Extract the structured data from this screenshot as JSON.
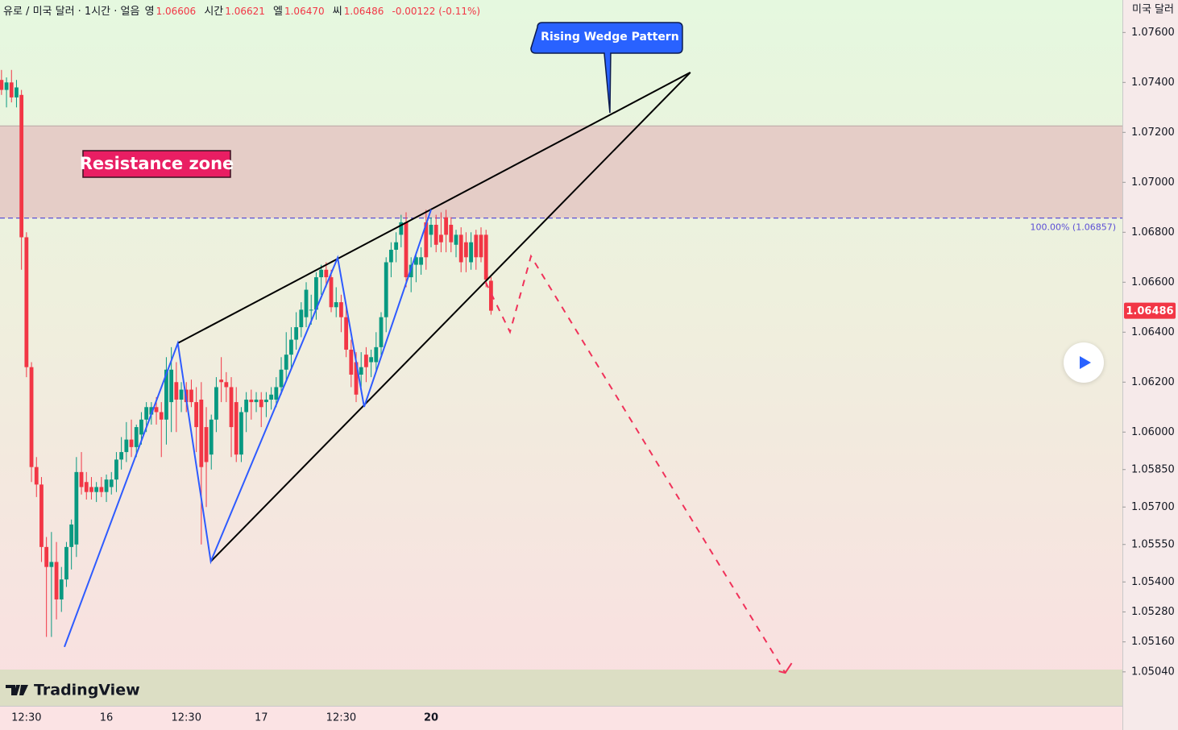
{
  "chart_data": {
    "type": "candlestick",
    "header": {
      "title": "유로 / 미국 달러 · 1시간 · 얼음",
      "open_label": "영",
      "open": "1.06606",
      "high_label": "시간",
      "high": "1.06621",
      "low_label": "엘",
      "low": "1.06470",
      "close_label": "씨",
      "close": "1.06486",
      "change": "-0.00122 (-0.11%)"
    },
    "y_axis_label": "미국 달러",
    "watermark": "TradingView",
    "up_color": "#089981",
    "down_color": "#f23645",
    "xlim": [
      -0.3,
      224.4
    ],
    "ylim": [
      1.04904,
      1.0773
    ],
    "yticks": [
      {
        "value": 1.076,
        "label": "1.07600"
      },
      {
        "value": 1.074,
        "label": "1.07400"
      },
      {
        "value": 1.072,
        "label": "1.07200"
      },
      {
        "value": 1.07,
        "label": "1.07000"
      },
      {
        "value": 1.068,
        "label": "1.06800"
      },
      {
        "value": 1.066,
        "label": "1.06600"
      },
      {
        "value": 1.064,
        "label": "1.06400"
      },
      {
        "value": 1.062,
        "label": "1.06200"
      },
      {
        "value": 1.06,
        "label": "1.06000"
      },
      {
        "value": 1.0585,
        "label": "1.05850"
      },
      {
        "value": 1.057,
        "label": "1.05700"
      },
      {
        "value": 1.0555,
        "label": "1.05550"
      },
      {
        "value": 1.054,
        "label": "1.05400"
      },
      {
        "value": 1.0528,
        "label": "1.05280"
      },
      {
        "value": 1.0516,
        "label": "1.05160"
      },
      {
        "value": 1.0504,
        "label": "1.05040"
      }
    ],
    "categories": [
      null,
      null,
      null,
      null,
      null,
      "12:30",
      null,
      null,
      null,
      null,
      null,
      null,
      null,
      null,
      null,
      null,
      null,
      null,
      null,
      null,
      null,
      "16",
      null,
      null,
      null,
      null,
      null,
      null,
      null,
      null,
      null,
      null,
      null,
      null,
      null,
      null,
      null,
      "12:30",
      null,
      null,
      null,
      null,
      null,
      null,
      null,
      null,
      null,
      null,
      null,
      null,
      null,
      null,
      "17",
      null,
      null,
      null,
      null,
      null,
      null,
      null,
      null,
      null,
      null,
      null,
      null,
      null,
      null,
      null,
      "12:30",
      null,
      null,
      null,
      null,
      null,
      null,
      null,
      null,
      null,
      null,
      null,
      null,
      null,
      null,
      null,
      null,
      null,
      "20",
      null,
      null,
      null,
      null,
      null,
      null,
      null,
      null,
      null,
      null,
      null,
      null
    ],
    "candles": [
      [
        1.0741,
        1.0745,
        1.0735,
        1.0737
      ],
      [
        1.0737,
        1.0742,
        1.073,
        1.074
      ],
      [
        1.074,
        1.0745,
        1.0732,
        1.0734
      ],
      [
        1.0734,
        1.0741,
        1.073,
        1.0738
      ],
      [
        1.0735,
        1.0737,
        1.0665,
        1.0678
      ],
      [
        1.0678,
        1.068,
        1.0622,
        1.0626
      ],
      [
        1.0626,
        1.0628,
        1.058,
        1.0586
      ],
      [
        1.0586,
        1.059,
        1.0574,
        1.0579
      ],
      [
        1.0579,
        1.0582,
        1.0548,
        1.0554
      ],
      [
        1.0554,
        1.0558,
        1.0518,
        1.0546
      ],
      [
        1.0546,
        1.056,
        1.0518,
        1.0548
      ],
      [
        1.0548,
        1.0556,
        1.0525,
        1.0533
      ],
      [
        1.0533,
        1.0546,
        1.0528,
        1.0541
      ],
      [
        1.0541,
        1.0556,
        1.0538,
        1.0554
      ],
      [
        1.0554,
        1.0565,
        1.0545,
        1.0563
      ],
      [
        1.0555,
        1.059,
        1.055,
        1.0584
      ],
      [
        1.0584,
        1.0592,
        1.0575,
        1.0578
      ],
      [
        1.058,
        1.0584,
        1.0573,
        1.0576
      ],
      [
        1.0578,
        1.0582,
        1.0573,
        1.0576
      ],
      [
        1.0576,
        1.058,
        1.0572,
        1.0578
      ],
      [
        1.0578,
        1.0582,
        1.0574,
        1.0576
      ],
      [
        1.0576,
        1.0583,
        1.0572,
        1.0581
      ],
      [
        1.0578,
        1.0584,
        1.0575,
        1.0581
      ],
      [
        1.0581,
        1.0592,
        1.0576,
        1.0589
      ],
      [
        1.0589,
        1.0598,
        1.0585,
        1.0592
      ],
      [
        1.0592,
        1.0604,
        1.0588,
        1.0597
      ],
      [
        1.0597,
        1.0605,
        1.059,
        1.0594
      ],
      [
        1.0594,
        1.0603,
        1.059,
        1.0602
      ],
      [
        1.0599,
        1.0608,
        1.0595,
        1.0605
      ],
      [
        1.0605,
        1.0612,
        1.06,
        1.061
      ],
      [
        1.0607,
        1.0612,
        1.0603,
        1.061
      ],
      [
        1.061,
        1.0614,
        1.0603,
        1.0608
      ],
      [
        1.0608,
        1.0612,
        1.059,
        1.0605
      ],
      [
        1.0605,
        1.063,
        1.0595,
        1.0625
      ],
      [
        1.0612,
        1.0634,
        1.06,
        1.0625
      ],
      [
        1.062,
        1.0628,
        1.06,
        1.0613
      ],
      [
        1.0613,
        1.062,
        1.0608,
        1.0617
      ],
      [
        1.0617,
        1.062,
        1.0608,
        1.0612
      ],
      [
        1.0617,
        1.0621,
        1.061,
        1.0612
      ],
      [
        1.0612,
        1.0618,
        1.0592,
        1.0602
      ],
      [
        1.0613,
        1.062,
        1.0555,
        1.0586
      ],
      [
        1.0602,
        1.061,
        1.057,
        1.0588
      ],
      [
        1.0591,
        1.0607,
        1.0585,
        1.0605
      ],
      [
        1.0605,
        1.0622,
        1.06,
        1.0618
      ],
      [
        1.0621,
        1.063,
        1.0612,
        1.062
      ],
      [
        1.062,
        1.0624,
        1.0612,
        1.0618
      ],
      [
        1.0618,
        1.0622,
        1.059,
        1.0602
      ],
      [
        1.0612,
        1.0618,
        1.0588,
        1.0591
      ],
      [
        1.0591,
        1.061,
        1.0588,
        1.0608
      ],
      [
        1.0608,
        1.0616,
        1.06,
        1.0613
      ],
      [
        1.0613,
        1.0617,
        1.0605,
        1.0612
      ],
      [
        1.0612,
        1.0616,
        1.0608,
        1.0613
      ],
      [
        1.0613,
        1.0616,
        1.0602,
        1.061
      ],
      [
        1.0612,
        1.0616,
        1.0606,
        1.0613
      ],
      [
        1.0613,
        1.0618,
        1.0609,
        1.0615
      ],
      [
        1.0613,
        1.0622,
        1.061,
        1.0618
      ],
      [
        1.0618,
        1.063,
        1.0615,
        1.0625
      ],
      [
        1.0625,
        1.064,
        1.062,
        1.0631
      ],
      [
        1.0631,
        1.0642,
        1.0625,
        1.0637
      ],
      [
        1.0637,
        1.0648,
        1.0633,
        1.0642
      ],
      [
        1.0642,
        1.0652,
        1.0638,
        1.0649
      ],
      [
        1.0646,
        1.066,
        1.0642,
        1.0657
      ],
      [
        1.0649,
        1.0655,
        1.0643,
        1.0649
      ],
      [
        1.0649,
        1.0664,
        1.0645,
        1.0662
      ],
      [
        1.0662,
        1.0667,
        1.0655,
        1.0665
      ],
      [
        1.0665,
        1.0668,
        1.0658,
        1.0662
      ],
      [
        1.0662,
        1.0665,
        1.0648,
        1.065
      ],
      [
        1.065,
        1.0658,
        1.0646,
        1.0652
      ],
      [
        1.0652,
        1.0655,
        1.064,
        1.0646
      ],
      [
        1.0646,
        1.065,
        1.063,
        1.0633
      ],
      [
        1.0633,
        1.0637,
        1.0618,
        1.0623
      ],
      [
        1.0628,
        1.0632,
        1.0612,
        1.0615
      ],
      [
        1.0623,
        1.0632,
        1.0618,
        1.0626
      ],
      [
        1.0631,
        1.0634,
        1.062,
        1.0626
      ],
      [
        1.0628,
        1.0633,
        1.0622,
        1.063
      ],
      [
        1.0628,
        1.064,
        1.0624,
        1.0634
      ],
      [
        1.0634,
        1.0648,
        1.063,
        1.0646
      ],
      [
        1.0646,
        1.067,
        1.064,
        1.0668
      ],
      [
        1.0668,
        1.0676,
        1.0662,
        1.0673
      ],
      [
        1.0673,
        1.068,
        1.0668,
        1.0676
      ],
      [
        1.0679,
        1.0687,
        1.0674,
        1.0684
      ],
      [
        1.0684,
        1.0688,
        1.0658,
        1.0662
      ],
      [
        1.0662,
        1.067,
        1.0656,
        1.0667
      ],
      [
        1.0667,
        1.0672,
        1.066,
        1.067
      ],
      [
        1.0667,
        1.0674,
        1.0663,
        1.067
      ],
      [
        1.0684,
        1.0689,
        1.0665,
        1.067
      ],
      [
        1.0679,
        1.0686,
        1.0674,
        1.0683
      ],
      [
        1.0683,
        1.0687,
        1.0672,
        1.0675
      ],
      [
        1.0679,
        1.0688,
        1.0672,
        1.0676
      ],
      [
        1.0686,
        1.0689,
        1.0672,
        1.0679
      ],
      [
        1.0683,
        1.0686,
        1.0672,
        1.0676
      ],
      [
        1.0675,
        1.0681,
        1.067,
        1.0679
      ],
      [
        1.0679,
        1.0682,
        1.0664,
        1.0668
      ],
      [
        1.0676,
        1.068,
        1.0664,
        1.067
      ],
      [
        1.0668,
        1.068,
        1.0665,
        1.0676
      ],
      [
        1.0679,
        1.0681,
        1.0665,
        1.067
      ],
      [
        1.0679,
        1.0682,
        1.0668,
        1.067
      ],
      [
        1.0679,
        1.0681,
        1.0658,
        1.0661
      ],
      [
        1.06606,
        1.06621,
        1.0647,
        1.06486
      ]
    ],
    "resistance_zone": {
      "label": "Resistance zone",
      "range": [
        1.06857,
        1.07226
      ]
    },
    "level_line": {
      "value": 1.06857,
      "label": "100.00% (1.06857)"
    },
    "wedge_lines": [
      [
        [
          35.3,
          1.06356
        ],
        [
          137.9,
          1.0744
        ]
      ],
      [
        [
          41.9,
          1.05482
        ],
        [
          137.9,
          1.0744
        ]
      ]
    ],
    "zigzag": [
      [
        12.6,
        1.0514
      ],
      [
        35.3,
        1.06356
      ],
      [
        41.9,
        1.05482
      ],
      [
        67.3,
        1.06698
      ],
      [
        72.6,
        1.06101
      ],
      [
        86.0,
        1.06891
      ]
    ],
    "projection": [
      [
        96.9,
        1.06601
      ],
      [
        101.8,
        1.06401
      ],
      [
        106.0,
        1.06704
      ],
      [
        156.9,
        1.05036
      ]
    ],
    "callout": {
      "text": "Rising Wedge Pattern",
      "point": [
        121.8,
        1.07278
      ]
    }
  }
}
